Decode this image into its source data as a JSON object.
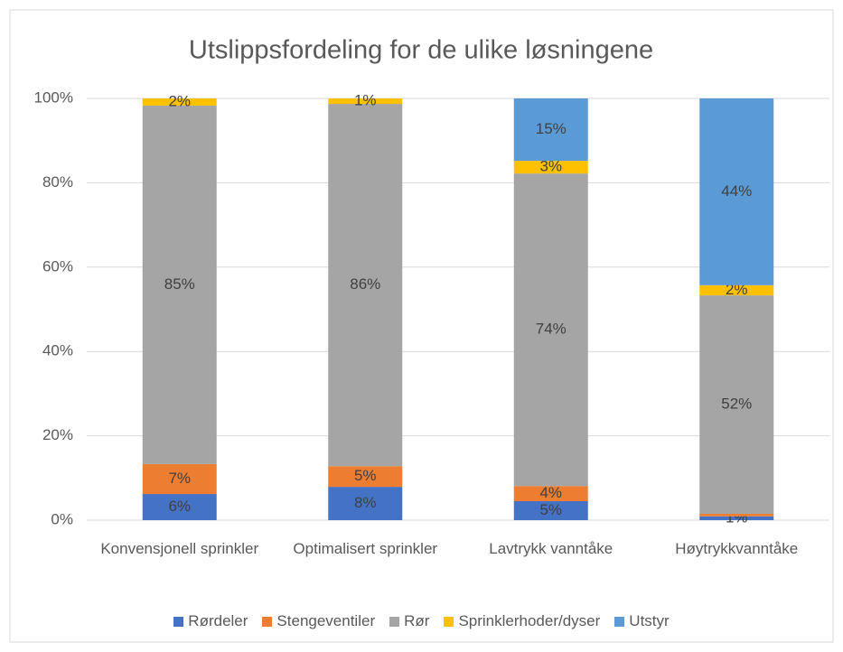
{
  "chart_data": {
    "type": "stacked_bar",
    "title": "Utslippsfordeling for de ulike løsningene",
    "categories": [
      "Konvensjonell sprinkler",
      "Optimalisert sprinkler",
      "Lavtrykk vanntåke",
      "Høytrykkvanntåke"
    ],
    "series": [
      {
        "name": "Rørdeler",
        "color": "#4472c4",
        "values": [
          6.2,
          7.9,
          4.5,
          0.9
        ],
        "value_labels": [
          "6%",
          "8%",
          "5%",
          "1%"
        ]
      },
      {
        "name": "Stengeventiler",
        "color": "#ed7d31",
        "values": [
          7.1,
          4.9,
          3.6,
          0.6
        ],
        "value_labels": [
          "7%",
          "5%",
          "4%",
          null
        ]
      },
      {
        "name": "Rør",
        "color": "#a5a5a5",
        "values": [
          85,
          85.9,
          74.1,
          51.8
        ],
        "value_labels": [
          "85%",
          "86%",
          "74%",
          "52%"
        ]
      },
      {
        "name": "Sprinklerhoder/dyser",
        "color": "#ffc000",
        "values": [
          1.7,
          1.3,
          3.0,
          2.4
        ],
        "value_labels": [
          "2%",
          "1%",
          "3%",
          "2%"
        ]
      },
      {
        "name": "Utstyr",
        "color": "#5b9bd5",
        "values": [
          0,
          0,
          14.8,
          44.3
        ],
        "value_labels": [
          null,
          null,
          "15%",
          "44%"
        ]
      }
    ],
    "ylim": [
      0,
      100
    ],
    "yticks": [
      {
        "value": 0,
        "label": "0%"
      },
      {
        "value": 20,
        "label": "20%"
      },
      {
        "value": 40,
        "label": "40%"
      },
      {
        "value": 60,
        "label": "60%"
      },
      {
        "value": 80,
        "label": "80%"
      },
      {
        "value": 100,
        "label": "100%"
      }
    ],
    "grid": true,
    "legend": "bottom"
  }
}
